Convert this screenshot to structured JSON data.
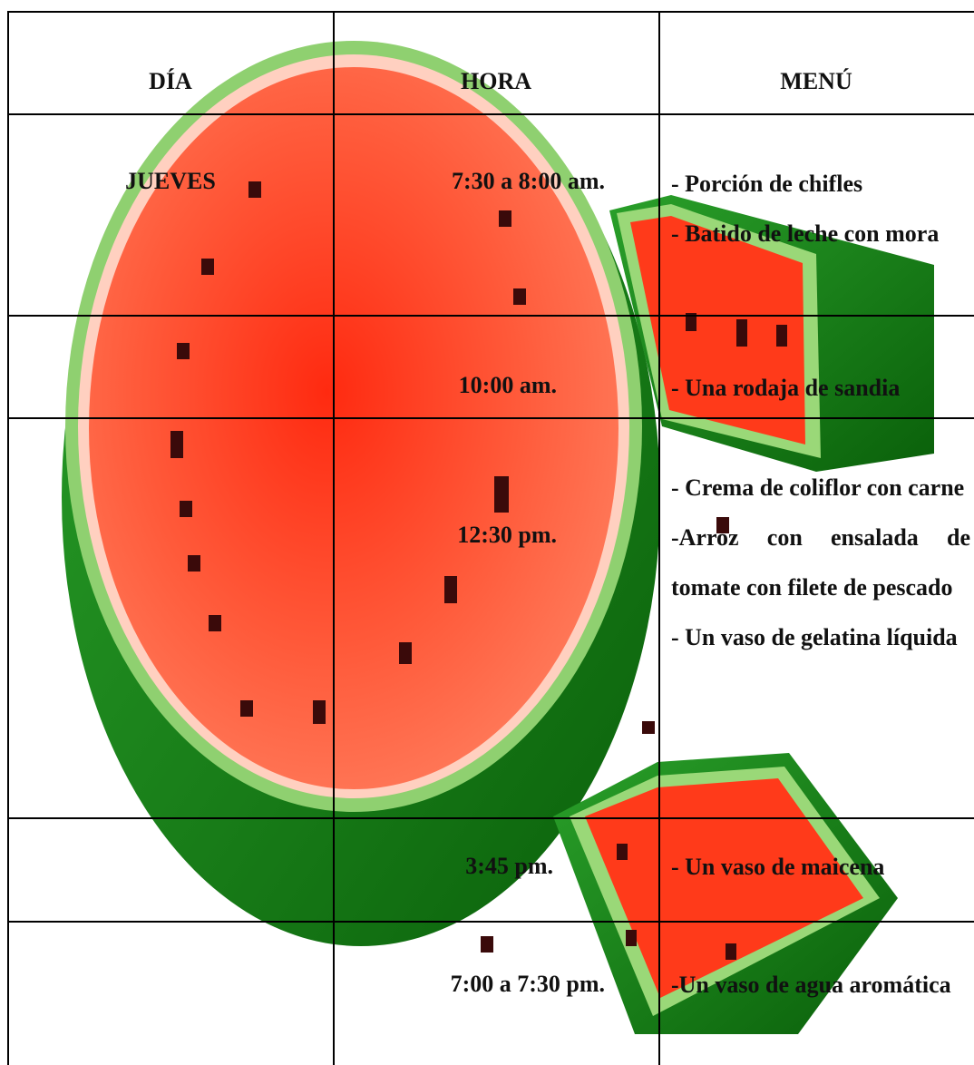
{
  "table": {
    "headers": [
      "DÍA",
      "HORA",
      "MENÚ"
    ],
    "rows": [
      {
        "day": "JUEVES",
        "time": "7:30 a 8:00 am.",
        "menu": [
          "- Porción de chifles",
          "- Batido de leche con mora"
        ]
      },
      {
        "time": "10:00 am.",
        "menu": [
          "- Una rodaja de sandia"
        ]
      },
      {
        "time": "12:30 pm.",
        "menu": [
          "- Crema de coliflor con carne",
          "-Arroz con ensalada de tomate con filete de pescado",
          "- Un vaso de gelatina líquida"
        ]
      },
      {
        "time": "3:45 pm.",
        "menu": [
          "- Un vaso de maicena"
        ]
      },
      {
        "time": "7:00 a 7:30 pm.",
        "menu": [
          "-Un vaso de agua aromática"
        ]
      }
    ]
  }
}
